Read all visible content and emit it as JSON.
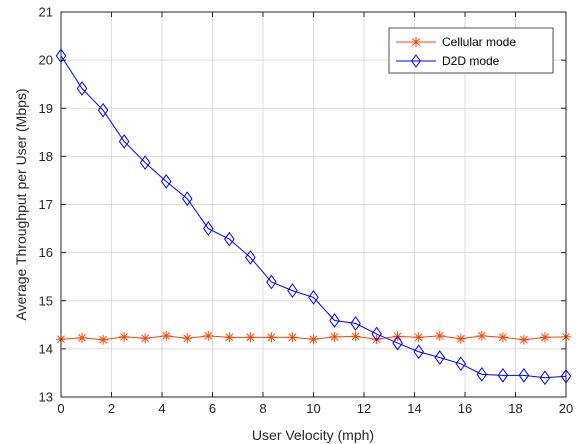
{
  "chart_data": {
    "type": "line",
    "title": "",
    "xlabel": "User Velocity (mph)",
    "ylabel": "Average Throughput per User (Mbps)",
    "xlim": [
      0,
      20
    ],
    "ylim": [
      13,
      21
    ],
    "xticks": [
      0,
      2,
      4,
      6,
      8,
      10,
      12,
      14,
      16,
      18,
      20
    ],
    "yticks": [
      13,
      14,
      15,
      16,
      17,
      18,
      19,
      20,
      21
    ],
    "grid": true,
    "legend_position": "top-right",
    "x": [
      0,
      0.833,
      1.667,
      2.5,
      3.333,
      4.167,
      5,
      5.833,
      6.667,
      7.5,
      8.333,
      9.167,
      10,
      10.833,
      11.667,
      12.5,
      13.333,
      14.167,
      15,
      15.833,
      16.667,
      17.5,
      18.333,
      19.167,
      20
    ],
    "series": [
      {
        "name": "Cellular mode",
        "color": "#ff4500",
        "marker": "asterisk",
        "values": [
          14.2,
          14.23,
          14.19,
          14.25,
          14.22,
          14.27,
          14.22,
          14.27,
          14.24,
          14.24,
          14.24,
          14.24,
          14.2,
          14.25,
          14.26,
          14.2,
          14.26,
          14.24,
          14.27,
          14.21,
          14.27,
          14.24,
          14.19,
          14.24,
          14.25
        ]
      },
      {
        "name": "D2D mode",
        "color": "#0000ff",
        "marker": "diamond",
        "values": [
          20.09,
          19.41,
          18.96,
          18.31,
          17.87,
          17.48,
          17.12,
          16.5,
          16.28,
          15.9,
          15.39,
          15.21,
          15.07,
          14.59,
          14.53,
          14.31,
          14.12,
          13.94,
          13.82,
          13.69,
          13.47,
          13.45,
          13.45,
          13.4,
          13.43
        ]
      }
    ]
  }
}
